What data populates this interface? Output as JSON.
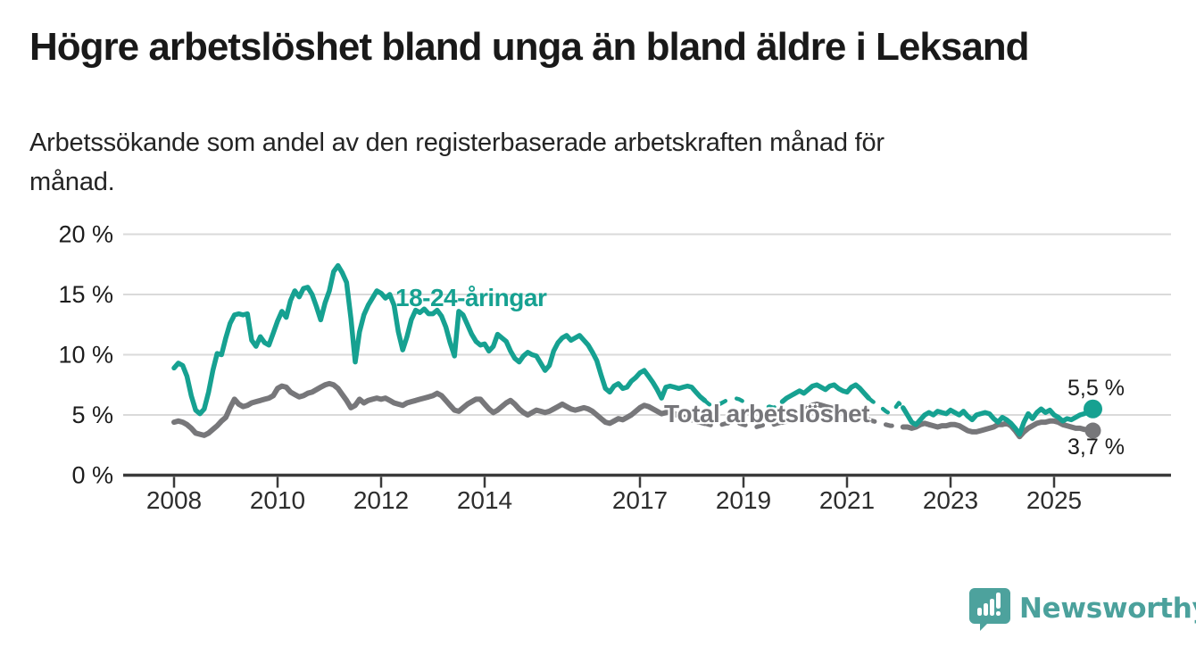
{
  "header": {
    "title": "Högre arbetslöshet bland unga än bland äldre i Leksand",
    "subtitle_line1": "Arbetssökande som andel av den registerbaserade arbetskraften månad för",
    "subtitle_line2": "månad."
  },
  "chart_data": {
    "type": "line",
    "unit": "%",
    "x_start": "2008-01",
    "x_end": "2025-10",
    "frequency": "monthly",
    "grid": "horizontal-only",
    "y_axis": {
      "min": 0,
      "max": 20,
      "ticks": [
        {
          "v": 0,
          "label": "0 %"
        },
        {
          "v": 5,
          "label": "5 %"
        },
        {
          "v": 10,
          "label": "10 %"
        },
        {
          "v": 15,
          "label": "15 %"
        },
        {
          "v": 20,
          "label": "20 %"
        }
      ]
    },
    "x_axis": {
      "ticks": [
        {
          "v": 2008,
          "label": "2008"
        },
        {
          "v": 2010,
          "label": "2010"
        },
        {
          "v": 2012,
          "label": "2012"
        },
        {
          "v": 2014,
          "label": "2014"
        },
        {
          "v": 2017,
          "label": "2017"
        },
        {
          "v": 2019,
          "label": "2019"
        },
        {
          "v": 2021,
          "label": "2021"
        },
        {
          "v": 2023,
          "label": "2023"
        },
        {
          "v": 2025,
          "label": "2025"
        }
      ]
    },
    "gap_segments": [
      {
        "from_index": 123,
        "to_index": 141,
        "note": "dashed segment"
      },
      {
        "from_index": 161,
        "to_index": 169,
        "note": "dashed segment"
      }
    ],
    "series": [
      {
        "name": "Total arbetslöshet",
        "color": "#77777a",
        "end_label": "3,7 %",
        "end_value": 3.7,
        "values": [
          4.4,
          4.5,
          4.4,
          4.2,
          3.9,
          3.5,
          3.4,
          3.3,
          3.5,
          3.8,
          4.1,
          4.5,
          4.8,
          5.6,
          6.3,
          5.9,
          5.7,
          5.8,
          6.0,
          6.1,
          6.2,
          6.3,
          6.4,
          6.6,
          7.2,
          7.4,
          7.3,
          6.9,
          6.7,
          6.5,
          6.6,
          6.8,
          6.9,
          7.1,
          7.3,
          7.5,
          7.6,
          7.5,
          7.2,
          6.7,
          6.2,
          5.6,
          5.8,
          6.3,
          6.0,
          6.2,
          6.3,
          6.4,
          6.3,
          6.4,
          6.2,
          6.0,
          5.9,
          5.8,
          6.0,
          6.1,
          6.2,
          6.3,
          6.4,
          6.5,
          6.6,
          6.8,
          6.6,
          6.2,
          5.8,
          5.4,
          5.3,
          5.6,
          5.9,
          6.1,
          6.3,
          6.3,
          5.9,
          5.5,
          5.2,
          5.4,
          5.7,
          6.0,
          6.2,
          5.9,
          5.5,
          5.2,
          5.0,
          5.2,
          5.4,
          5.3,
          5.2,
          5.3,
          5.5,
          5.7,
          5.9,
          5.7,
          5.5,
          5.4,
          5.5,
          5.6,
          5.5,
          5.3,
          5.0,
          4.7,
          4.4,
          4.3,
          4.5,
          4.7,
          4.6,
          4.8,
          5.0,
          5.3,
          5.6,
          5.8,
          5.7,
          5.5,
          5.3,
          5.1,
          5.2,
          5.3,
          5.1,
          4.9,
          4.8,
          4.7,
          4.6,
          4.5,
          4.4,
          4.3,
          4.2,
          4.1,
          4.1,
          4.2,
          4.3,
          4.3,
          4.4,
          4.3,
          4.2,
          4.1,
          4.0,
          4.0,
          4.1,
          4.2,
          4.3,
          4.2,
          4.3,
          4.4,
          4.5,
          4.6,
          4.8,
          5.0,
          5.2,
          5.6,
          5.8,
          5.9,
          5.8,
          5.7,
          5.6,
          5.5,
          5.4,
          5.3,
          5.2,
          5.3,
          5.2,
          5.0,
          4.8,
          4.6,
          4.5,
          4.4,
          4.3,
          4.2,
          4.1,
          4.1,
          4.1,
          4.0,
          4.0,
          3.9,
          4.0,
          4.2,
          4.3,
          4.2,
          4.1,
          4.0,
          4.1,
          4.1,
          4.2,
          4.2,
          4.1,
          3.9,
          3.7,
          3.6,
          3.6,
          3.7,
          3.8,
          3.9,
          4.0,
          4.2,
          4.2,
          4.3,
          4.1,
          3.7,
          3.2,
          3.6,
          3.9,
          4.1,
          4.3,
          4.4,
          4.4,
          4.5,
          4.5,
          4.4,
          4.2,
          4.1,
          4.0,
          3.9,
          3.9,
          3.8,
          3.8,
          3.7
        ]
      },
      {
        "name": "18-24-åringar",
        "color": "#16a191",
        "end_label": "5,5 %",
        "end_value": 5.5,
        "values": [
          8.9,
          9.3,
          9.1,
          8.2,
          6.6,
          5.4,
          5.1,
          5.5,
          6.9,
          8.7,
          10.1,
          10.0,
          11.4,
          12.6,
          13.3,
          13.4,
          13.3,
          13.4,
          11.2,
          10.7,
          11.5,
          11.0,
          10.8,
          11.8,
          12.8,
          13.6,
          13.1,
          14.5,
          15.3,
          14.8,
          15.5,
          15.6,
          15.0,
          14.0,
          12.9,
          14.3,
          15.3,
          16.9,
          17.4,
          16.8,
          16.0,
          13.0,
          9.4,
          11.9,
          13.3,
          14.1,
          14.7,
          15.3,
          15.1,
          14.7,
          15.0,
          14.1,
          11.9,
          10.4,
          11.5,
          12.9,
          13.7,
          13.5,
          13.8,
          13.4,
          13.4,
          13.7,
          13.2,
          12.3,
          11.0,
          9.9,
          13.6,
          13.3,
          12.5,
          11.7,
          11.1,
          10.8,
          10.9,
          10.3,
          10.7,
          11.7,
          11.4,
          11.1,
          10.3,
          9.7,
          9.4,
          9.9,
          10.2,
          10.0,
          9.9,
          9.3,
          8.7,
          9.1,
          10.3,
          11.0,
          11.4,
          11.6,
          11.2,
          11.4,
          11.6,
          11.2,
          10.8,
          10.2,
          9.5,
          8.3,
          7.2,
          6.9,
          7.4,
          7.6,
          7.2,
          7.3,
          7.8,
          8.1,
          8.5,
          8.7,
          8.2,
          7.7,
          7.1,
          6.4,
          7.3,
          7.4,
          7.3,
          7.2,
          7.3,
          7.4,
          7.3,
          6.9,
          6.5,
          6.2,
          5.9,
          5.7,
          5.8,
          6.0,
          6.2,
          6.3,
          6.4,
          6.3,
          6.1,
          5.8,
          5.6,
          5.4,
          5.5,
          5.6,
          5.7,
          5.6,
          5.8,
          6.1,
          6.4,
          6.6,
          6.8,
          7.0,
          6.8,
          7.1,
          7.4,
          7.5,
          7.3,
          7.1,
          7.4,
          7.5,
          7.2,
          7.0,
          6.9,
          7.3,
          7.5,
          7.2,
          6.8,
          6.4,
          6.1,
          5.9,
          5.6,
          5.3,
          5.1,
          5.5,
          6.0,
          5.6,
          5.0,
          4.4,
          4.2,
          4.6,
          5.0,
          5.2,
          5.0,
          5.3,
          5.2,
          5.1,
          5.4,
          5.2,
          5.0,
          5.3,
          4.9,
          4.6,
          5.0,
          5.1,
          5.2,
          5.1,
          4.7,
          4.4,
          4.8,
          4.6,
          4.3,
          3.9,
          3.4,
          4.4,
          5.1,
          4.7,
          5.2,
          5.5,
          5.2,
          5.4,
          5.0,
          4.8,
          4.5,
          4.7,
          4.6,
          4.8,
          5.0,
          5.1,
          5.3,
          5.5
        ]
      }
    ],
    "annotations": {
      "series_label_young": "18-24-åringar",
      "series_label_total": "Total arbetslöshet",
      "end_value_young": "5,5 %",
      "end_value_total": "3,7 %"
    }
  },
  "footer": {
    "brand": "Newsworthy",
    "brand_color": "#4ba19c"
  }
}
